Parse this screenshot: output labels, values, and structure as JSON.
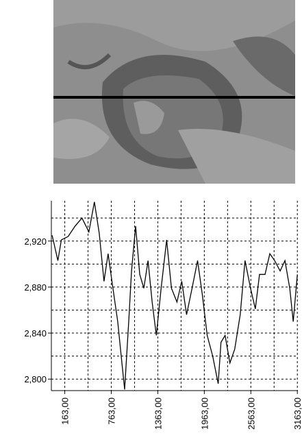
{
  "chart_data": {
    "type": "line",
    "x": [
      0,
      74,
      119,
      207,
      296,
      385,
      474,
      545,
      607,
      669,
      722,
      784,
      846,
      900,
      935,
      988,
      1024,
      1077,
      1130,
      1183,
      1237,
      1290,
      1344,
      1406,
      1477,
      1539,
      1610,
      1672,
      1734,
      1805,
      1876,
      1938,
      2000,
      2071,
      2142,
      2178,
      2231,
      2293,
      2355,
      2426,
      2488,
      2559,
      2621,
      2675,
      2746,
      2808,
      2870,
      2941,
      3003,
      3065,
      3110,
      3163
    ],
    "series": [
      {
        "color": "#000000",
        "values": [
          2.925,
          2.903,
          2.921,
          2.924,
          2.933,
          2.94,
          2.928,
          2.954,
          2.927,
          2.885,
          2.909,
          2.879,
          2.85,
          2.814,
          2.791,
          2.85,
          2.894,
          2.933,
          2.891,
          2.879,
          2.903,
          2.867,
          2.838,
          2.879,
          2.921,
          2.879,
          2.867,
          2.885,
          2.856,
          2.879,
          2.903,
          2.873,
          2.838,
          2.82,
          2.796,
          2.832,
          2.838,
          2.814,
          2.826,
          2.856,
          2.903,
          2.879,
          2.861,
          2.891,
          2.891,
          2.909,
          2.903,
          2.894,
          2.903,
          2.879,
          2.85,
          2.891
        ]
      }
    ],
    "xlim": [
      -10,
      3170
    ],
    "ylim": [
      2.79,
      2.955
    ],
    "xticks": [
      {
        "value": 163,
        "label": "163,00"
      },
      {
        "value": 763,
        "label": "763,00"
      },
      {
        "value": 1363,
        "label": "1363,00"
      },
      {
        "value": 1963,
        "label": "1963,00"
      },
      {
        "value": 2563,
        "label": "2563,00"
      },
      {
        "value": 3163,
        "label": "3163,00"
      }
    ],
    "yticks": [
      {
        "value": 2.8,
        "label": "2,800"
      },
      {
        "value": 2.84,
        "label": "2,840"
      },
      {
        "value": 2.88,
        "label": "2,880"
      },
      {
        "value": 2.92,
        "label": "2,920"
      }
    ],
    "xgrid": [
      163,
      463,
      763,
      1063,
      1363,
      1663,
      1963,
      2263,
      2563,
      2863,
      3163
    ],
    "ygrid": [
      2.8,
      2.82,
      2.84,
      2.86,
      2.88,
      2.9,
      2.92,
      2.94
    ],
    "grid": true
  }
}
